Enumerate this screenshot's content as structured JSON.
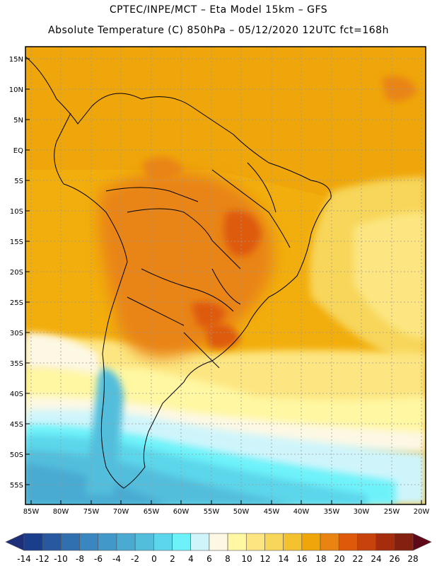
{
  "header": {
    "line1": "CPTEC/INPE/MCT –  Eta Model 15km – GFS",
    "line2": "Absolute Temperature (C) 850hPa – 05/12/2020 12UTC fct=168h"
  },
  "axes": {
    "lat_labels": [
      "15N",
      "10N",
      "5N",
      "EQ",
      "5S",
      "10S",
      "15S",
      "20S",
      "25S",
      "30S",
      "35S",
      "40S",
      "45S",
      "50S",
      "55S"
    ],
    "lon_labels": [
      "85W",
      "80W",
      "75W",
      "70W",
      "65W",
      "60W",
      "55W",
      "50W",
      "45W",
      "40W",
      "35W",
      "30W",
      "25W",
      "20W"
    ]
  },
  "colorbar": {
    "labels": [
      "-14",
      "-12",
      "-10",
      "-8",
      "-6",
      "-4",
      "-2",
      "0",
      "2",
      "4",
      "6",
      "8",
      "10",
      "12",
      "14",
      "16",
      "18",
      "20",
      "22",
      "24",
      "26",
      "28"
    ],
    "colors": [
      "#1a3e8c",
      "#2858a0",
      "#3070b0",
      "#3a86c0",
      "#4298c8",
      "#4aaad2",
      "#52bedc",
      "#5cd6ea",
      "#6ef2fa",
      "#cff5fb",
      "#fdf8e4",
      "#fff7a2",
      "#fde681",
      "#f7d65a",
      "#f3c22e",
      "#efa60a",
      "#e98412",
      "#de5a0a",
      "#c8420c",
      "#a52c0c",
      "#83200f"
    ],
    "under_color": "#1e2f7a",
    "over_color": "#5e0818"
  }
}
